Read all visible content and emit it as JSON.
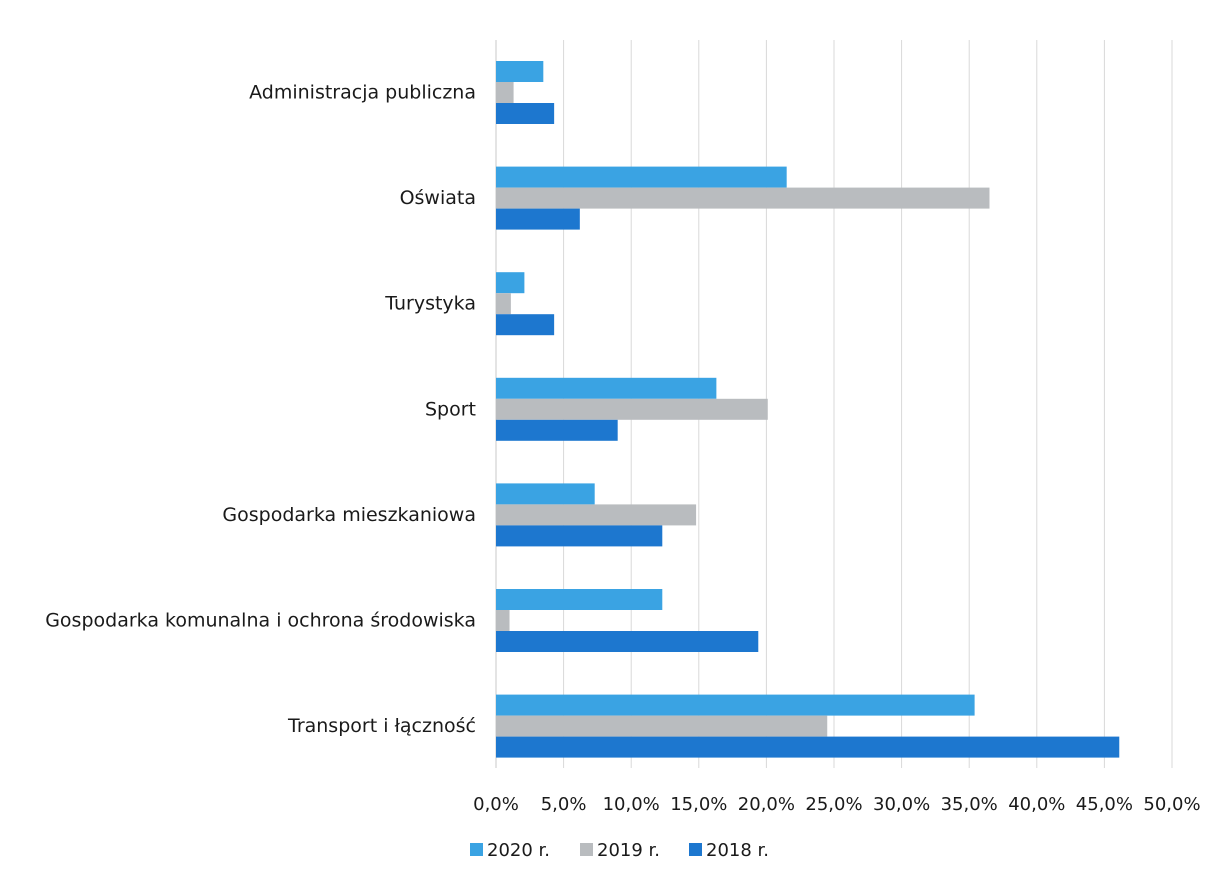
{
  "chart_data": {
    "type": "bar",
    "orientation": "horizontal",
    "categories": [
      "Administracja publiczna",
      "Oświata",
      "Turystyka",
      "Sport",
      "Gospodarka mieszkaniowa",
      "Gospodarka komunalna i ochrona środowiska",
      "Transport i łączność"
    ],
    "series": [
      {
        "name": "2020 r.",
        "color": "#3aa3e3",
        "values": [
          3.5,
          21.5,
          2.1,
          16.3,
          7.3,
          12.3,
          35.4
        ]
      },
      {
        "name": "2019 r.",
        "color": "#b9bcbf",
        "values": [
          1.3,
          36.5,
          1.1,
          20.1,
          14.8,
          1.0,
          24.5
        ]
      },
      {
        "name": "2018 r.",
        "color": "#1d77cf",
        "values": [
          4.3,
          6.2,
          4.3,
          9.0,
          12.3,
          19.4,
          46.1
        ]
      }
    ],
    "xlim": [
      0,
      50
    ],
    "x_ticks": [
      "0,0%",
      "5,0%",
      "10,0%",
      "15,0%",
      "20,0%",
      "25,0%",
      "30,0%",
      "35,0%",
      "40,0%",
      "45,0%",
      "50,0%"
    ],
    "grid": true,
    "legend_position": "bottom"
  }
}
